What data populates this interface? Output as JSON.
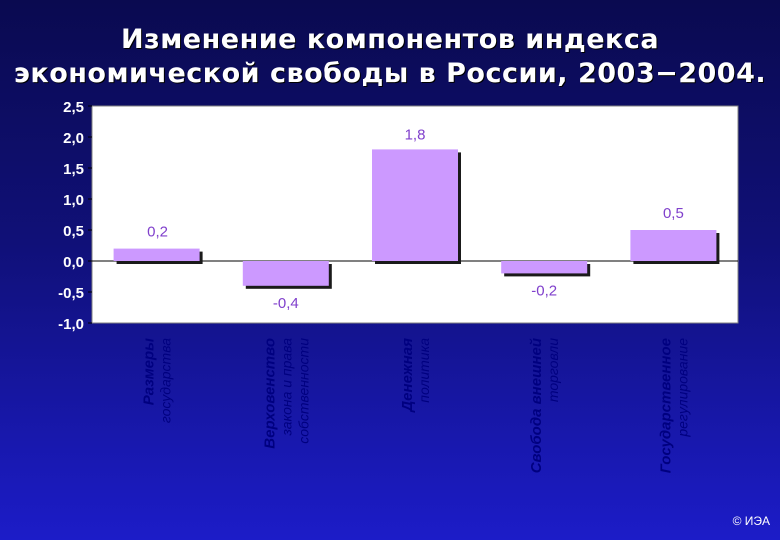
{
  "title_line1": "Изменение компонентов индекса",
  "title_line2": "экономической свободы в России, 2003−2004.",
  "copyright": "© ИЭА",
  "colors": {
    "plot_background": "#ffffff",
    "bar_fill": "#cc99ff",
    "bar_shadow": "#1a1a1a",
    "axis_text": "#ffffff",
    "data_label": "#8040cc",
    "category_text": "#000080"
  },
  "chart_data": {
    "type": "bar",
    "title": "Изменение компонентов индекса экономической свободы в России, 2003−2004.",
    "xlabel": "",
    "ylabel": "",
    "ylim": [
      -1.0,
      2.5
    ],
    "yticks": [
      "2,5",
      "2,0",
      "1,5",
      "1,0",
      "0,5",
      "0,0",
      "-0,5",
      "-1,0"
    ],
    "ytick_values": [
      2.5,
      2.0,
      1.5,
      1.0,
      0.5,
      0.0,
      -0.5,
      -1.0
    ],
    "grid": false,
    "legend": "none",
    "categories": [
      [
        "Размеры",
        "государства"
      ],
      [
        "Верховенство",
        "закона и права",
        "собственности"
      ],
      [
        "Денежная",
        "политика"
      ],
      [
        "Свобода внешней",
        "торговли"
      ],
      [
        "Государственное",
        "регулирование"
      ]
    ],
    "values": [
      0.2,
      -0.4,
      1.8,
      -0.2,
      0.5
    ],
    "data_labels": [
      "0,2",
      "-0,4",
      "1,8",
      "-0,2",
      "0,5"
    ]
  }
}
